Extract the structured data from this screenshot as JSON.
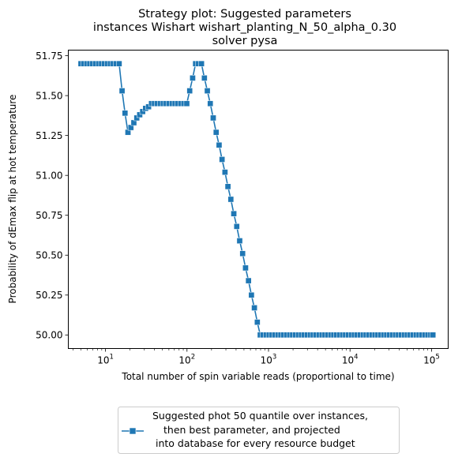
{
  "chart_data": {
    "type": "line",
    "title_lines": [
      "Strategy plot: Suggested parameters",
      "instances Wishart wishart_planting_N_50_alpha_0.30",
      "solver pysa"
    ],
    "xlabel": "Total number of spin variable reads (proportional to time)",
    "ylabel": "Probability of dEmax flip at hot temperature",
    "xscale": "log",
    "xlim": [
      3.5,
      160000
    ],
    "ylim": [
      49.915,
      51.785
    ],
    "x_ticks": [
      {
        "value": 10,
        "base": "10",
        "exp": "1"
      },
      {
        "value": 100,
        "base": "10",
        "exp": "2"
      },
      {
        "value": 1000,
        "base": "10",
        "exp": "3"
      },
      {
        "value": 10000,
        "base": "10",
        "exp": "4"
      },
      {
        "value": 100000,
        "base": "10",
        "exp": "5"
      }
    ],
    "y_ticks": [
      "50.00",
      "50.25",
      "50.50",
      "50.75",
      "51.00",
      "51.25",
      "51.50",
      "51.75"
    ],
    "color": "#1f77b4",
    "marker": "square",
    "legend": {
      "placement": "below plot",
      "lines": [
        "Suggested phot 50 quantile over instances,",
        "then best parameter, and projected",
        "into database for every resource budget"
      ]
    },
    "series": [
      {
        "x": [
          5,
          5.43,
          5.9,
          6.41,
          6.97,
          7.57,
          8.23,
          8.94,
          9.71,
          10.55,
          11.47,
          12.46,
          13.54,
          14.71,
          15.98,
          17.37,
          18.87,
          20.51,
          22.28,
          24.21,
          26.31,
          28.59,
          31.06,
          33.75,
          36.67,
          39.85,
          43.3,
          47.05,
          51.12,
          55.55,
          60.36,
          65.59,
          71.27,
          77.44,
          84.14,
          91.43,
          99.35,
          107.95,
          117.3,
          127.46,
          138.49,
          150.48,
          163.51,
          177.67,
          193.05,
          209.77,
          227.93,
          247.66,
          269.11,
          292.41,
          317.73,
          345.24,
          375.13,
          407.61,
          442.9,
          481.25,
          522.92,
          568.2,
          617.39,
          670.85,
          728.94,
          792.05,
          860.63,
          935.15,
          1016.1,
          1104.1,
          1199.7,
          1303.6,
          1416.5,
          1539.1,
          1672.4,
          1817.2,
          1974.5,
          2145.5,
          2331.3,
          2533.1,
          2752.5,
          2990.8,
          3249.7,
          3531.1,
          3836.9,
          4169.1,
          4530.1,
          4922.3,
          5348.5,
          5811.6,
          6314.8,
          6861.6,
          7455.7,
          8101.3,
          8802.7,
          9564.9,
          10393,
          11293,
          12271,
          13333,
          14488,
          15742,
          17105,
          18586,
          20196,
          21944,
          23844,
          25909,
          28152,
          30590,
          33238,
          36116,
          39243,
          42641,
          46333,
          50345,
          54704,
          59441,
          64587,
          70180,
          76256,
          82859,
          90033,
          97829,
          104000
        ],
        "y": [
          51.7,
          51.7,
          51.7,
          51.7,
          51.7,
          51.7,
          51.7,
          51.7,
          51.7,
          51.7,
          51.7,
          51.7,
          51.7,
          51.7,
          51.53,
          51.39,
          51.27,
          51.3,
          51.33,
          51.36,
          51.38,
          51.4,
          51.42,
          51.43,
          51.45,
          51.45,
          51.45,
          51.45,
          51.45,
          51.45,
          51.45,
          51.45,
          51.45,
          51.45,
          51.45,
          51.45,
          51.45,
          51.53,
          51.61,
          51.7,
          51.7,
          51.7,
          51.61,
          51.53,
          51.45,
          51.36,
          51.27,
          51.19,
          51.1,
          51.02,
          50.93,
          50.85,
          50.76,
          50.68,
          50.59,
          50.51,
          50.42,
          50.34,
          50.25,
          50.17,
          50.08,
          50.0,
          50.0,
          50.0,
          50.0,
          50.0,
          50.0,
          50.0,
          50.0,
          50.0,
          50.0,
          50.0,
          50.0,
          50.0,
          50.0,
          50.0,
          50.0,
          50.0,
          50.0,
          50.0,
          50.0,
          50.0,
          50.0,
          50.0,
          50.0,
          50.0,
          50.0,
          50.0,
          50.0,
          50.0,
          50.0,
          50.0,
          50.0,
          50.0,
          50.0,
          50.0,
          50.0,
          50.0,
          50.0,
          50.0,
          50.0,
          50.0,
          50.0,
          50.0,
          50.0,
          50.0,
          50.0,
          50.0,
          50.0,
          50.0,
          50.0,
          50.0,
          50.0,
          50.0,
          50.0,
          50.0,
          50.0,
          50.0,
          50.0,
          50.0,
          50.0
        ]
      }
    ]
  }
}
